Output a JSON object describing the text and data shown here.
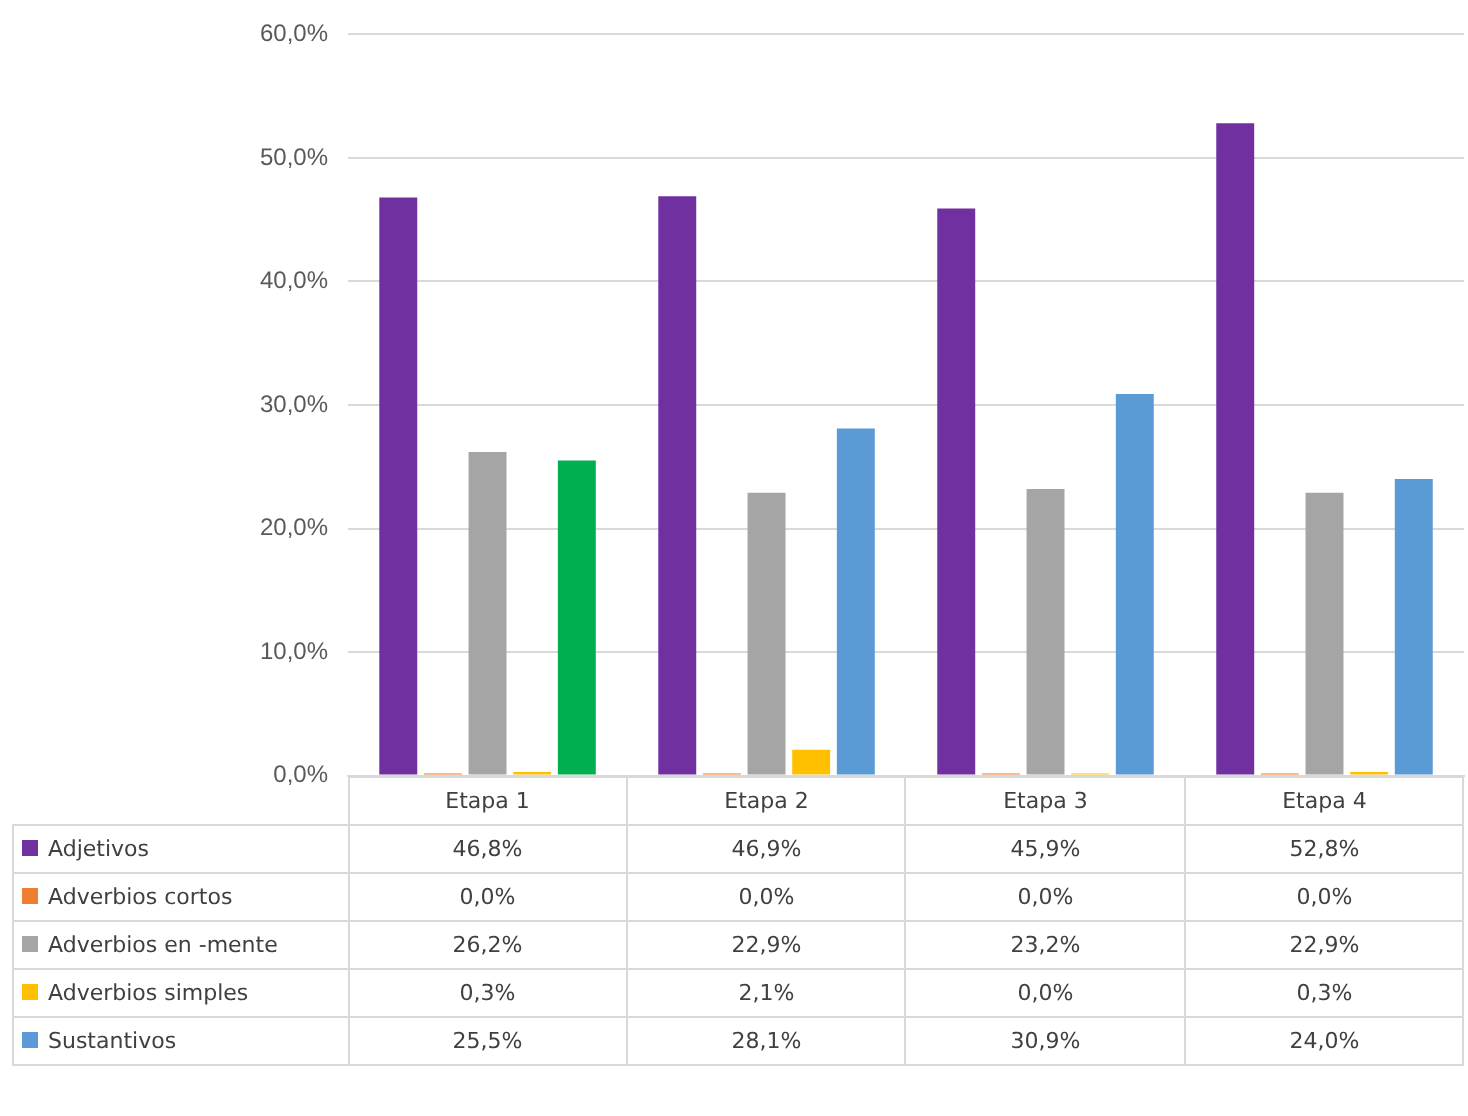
{
  "chart_data": {
    "type": "bar",
    "categories": [
      "Etapa 1",
      "Etapa 2",
      "Etapa 3",
      "Etapa 4"
    ],
    "series": [
      {
        "name": "Adjetivos",
        "color": "#7030a0",
        "values": [
          46.8,
          46.9,
          45.9,
          52.8
        ],
        "value_labels": [
          "46,8%",
          "46,9%",
          "45,9%",
          "52,8%"
        ]
      },
      {
        "name": "Adverbios cortos",
        "color": "#ed7d31",
        "values": [
          0.0,
          0.0,
          0.0,
          0.0
        ],
        "value_labels": [
          "0,0%",
          "0,0%",
          "0,0%",
          "0,0%"
        ]
      },
      {
        "name": "Adverbios  en -mente",
        "color": "#a5a5a5",
        "values": [
          26.2,
          22.9,
          23.2,
          22.9
        ],
        "value_labels": [
          "26,2%",
          "22,9%",
          "23,2%",
          "22,9%"
        ]
      },
      {
        "name": "Adverbios simples",
        "color": "#ffc000",
        "values": [
          0.3,
          2.1,
          0.0,
          0.3
        ],
        "value_labels": [
          "0,3%",
          "2,1%",
          "0,0%",
          "0,3%"
        ]
      },
      {
        "name": "Sustantivos",
        "color": "#5b9bd5",
        "colors": [
          "#00b050",
          "#5b9bd5",
          "#5b9bd5",
          "#5b9bd5"
        ],
        "values": [
          25.5,
          28.1,
          30.9,
          24.0
        ],
        "value_labels": [
          "25,5%",
          "28,1%",
          "30,9%",
          "24,0%"
        ]
      }
    ],
    "ylim": [
      0,
      60
    ],
    "yticks": [
      {
        "value": 0,
        "label": "0,0%"
      },
      {
        "value": 10,
        "label": "10,0%"
      },
      {
        "value": 20,
        "label": "20,0%"
      },
      {
        "value": 30,
        "label": "30,0%"
      },
      {
        "value": 40,
        "label": "40,0%"
      },
      {
        "value": 50,
        "label": "50,0%"
      },
      {
        "value": 60,
        "label": "60,0%"
      }
    ],
    "grid": "y",
    "legend": "bottom"
  }
}
